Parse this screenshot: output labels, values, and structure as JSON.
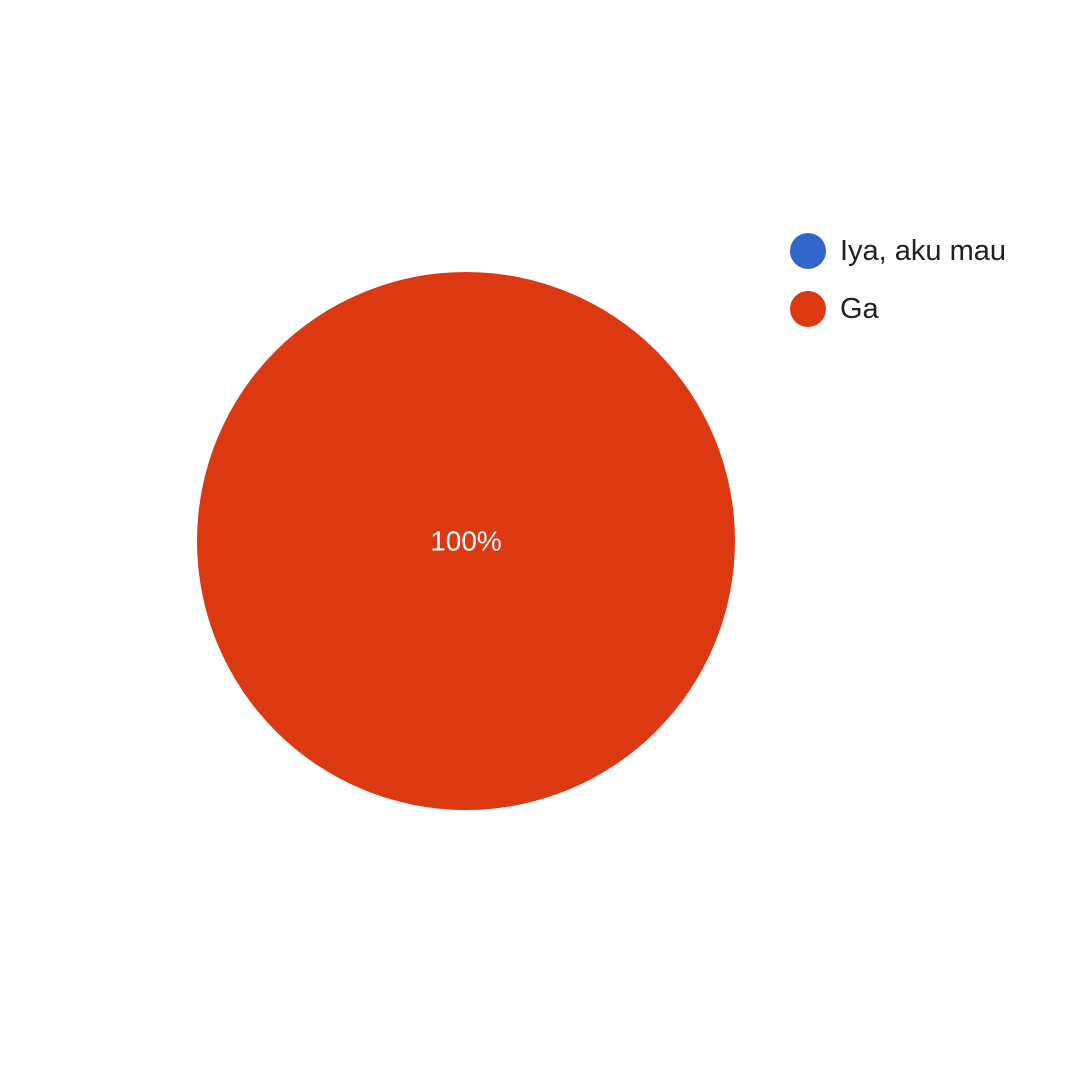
{
  "chart_data": {
    "type": "pie",
    "categories": [
      "Iya, aku mau",
      "Ga"
    ],
    "values": [
      0,
      100
    ],
    "colors": [
      "#3366cc",
      "#dc3912"
    ],
    "data_labels": [
      "",
      "100%"
    ],
    "legend": {
      "placement": "top-right",
      "entries": [
        "Iya, aku mau",
        "Ga"
      ]
    }
  }
}
